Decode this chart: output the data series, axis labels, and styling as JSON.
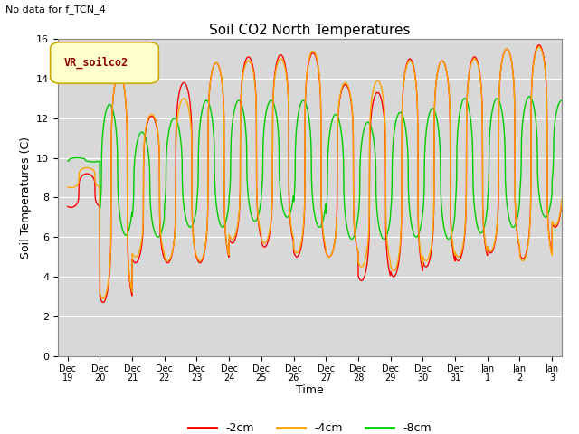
{
  "title": "Soil CO2 North Temperatures",
  "note": "No data for f_TCN_4",
  "ylabel": "Soil Temperatures (C)",
  "xlabel": "Time",
  "ylim": [
    0,
    16
  ],
  "legend_label": "VR_soilco2",
  "series_labels": [
    "-2cm",
    "-4cm",
    "-8cm"
  ],
  "series_colors": [
    "#ff0000",
    "#ffa500",
    "#00cc00"
  ],
  "background_color": "#d8d8d8",
  "x_tick_labels": [
    "Dec 19",
    "Dec 20",
    "Dec 21",
    "Dec 22",
    "Dec 23",
    "Dec 24",
    "Dec 25",
    "Dec 26",
    "Dec 27",
    "Dec 28",
    "Dec 29",
    "Dec 30",
    "Dec 31",
    "Jan 1",
    "Jan 2",
    "Jan 3"
  ],
  "n_days": 16,
  "points_per_day": 120,
  "mins_2cm": [
    7.5,
    2.7,
    4.7,
    4.7,
    4.7,
    5.7,
    5.5,
    5.0,
    5.0,
    3.8,
    4.0,
    4.5,
    4.8,
    5.2,
    4.9,
    6.5
  ],
  "maxs_2cm": [
    9.2,
    14.3,
    12.1,
    13.8,
    14.8,
    15.1,
    15.2,
    15.3,
    13.7,
    13.3,
    15.0,
    14.9,
    15.1,
    15.5,
    15.7,
    15.8
  ],
  "mins_4cm": [
    8.5,
    2.9,
    5.0,
    4.8,
    4.8,
    5.9,
    5.7,
    5.2,
    5.0,
    4.5,
    4.3,
    4.8,
    5.0,
    5.3,
    4.8,
    6.6
  ],
  "maxs_4cm": [
    9.5,
    14.3,
    12.2,
    13.0,
    14.8,
    14.9,
    15.0,
    15.4,
    13.8,
    13.9,
    14.9,
    14.9,
    15.0,
    15.5,
    15.6,
    15.9
  ],
  "mins_8cm": [
    9.8,
    6.1,
    6.0,
    6.5,
    6.5,
    6.8,
    7.0,
    6.5,
    5.9,
    5.9,
    6.0,
    5.9,
    6.2,
    6.5,
    7.0,
    7.8
  ],
  "maxs_8cm": [
    10.0,
    12.7,
    11.3,
    12.0,
    12.9,
    12.9,
    12.9,
    12.9,
    12.2,
    11.8,
    12.3,
    12.5,
    13.0,
    13.0,
    13.1,
    12.9
  ],
  "phase_2cm": 0.35,
  "phase_4cm": 0.35,
  "phase_8cm": 0.05,
  "peak_sharpness": 4.0,
  "figsize": [
    6.4,
    4.8
  ],
  "dpi": 100
}
